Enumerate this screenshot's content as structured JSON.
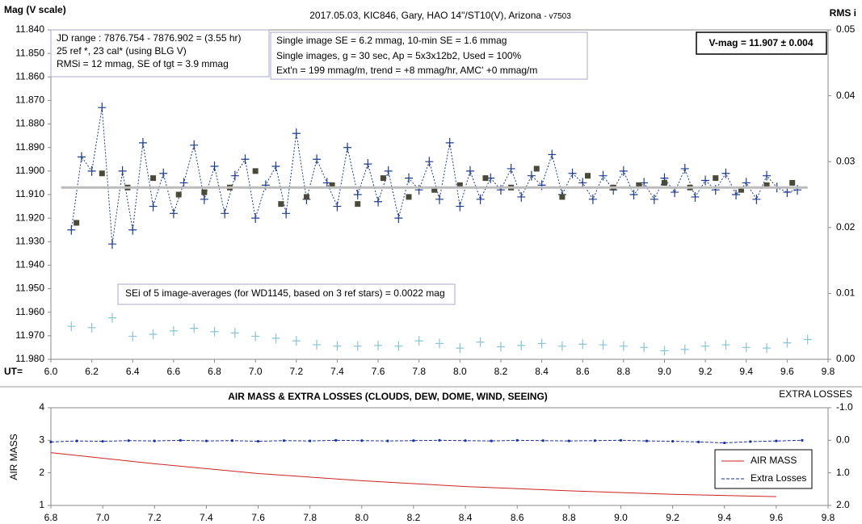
{
  "chart_data": [
    {
      "type": "line",
      "title": "2017.05.03,  KIC846, Gary, HAO 14\"/ST10(V), Arizona",
      "subtitle": "- v7503",
      "y_label": "Mag (V scale)",
      "y2_label": "RMS i",
      "x_label": "UT=",
      "xlim": [
        6.0,
        9.8
      ],
      "xticks": [
        {
          "value": 6.0,
          "label": "6.0"
        },
        6.2,
        6.4,
        6.6,
        6.8,
        {
          "value": 7.0,
          "label": "7.0"
        },
        7.2,
        7.4,
        7.6,
        7.8,
        {
          "value": 8.0,
          "label": "8.0"
        },
        8.2,
        8.4,
        8.6,
        8.8,
        {
          "value": 9.0,
          "label": "9.0"
        },
        9.2,
        9.4,
        9.6,
        9.8
      ],
      "ylim": [
        11.98,
        11.84
      ],
      "yticks": [
        {
          "value": 11.84,
          "label": "11.840"
        },
        {
          "value": 11.85,
          "label": "11.850"
        },
        {
          "value": 11.86,
          "label": "11.860"
        },
        {
          "value": 11.87,
          "label": "11.870"
        },
        {
          "value": 11.88,
          "label": "11.880"
        },
        {
          "value": 11.89,
          "label": "11.890"
        },
        {
          "value": 11.9,
          "label": "11.900"
        },
        {
          "value": 11.91,
          "label": "11.910"
        },
        {
          "value": 11.92,
          "label": "11.920"
        },
        {
          "value": 11.93,
          "label": "11.930"
        },
        {
          "value": 11.94,
          "label": "11.940"
        },
        {
          "value": 11.95,
          "label": "11.950"
        },
        {
          "value": 11.96,
          "label": "11.960"
        },
        {
          "value": 11.97,
          "label": "11.970"
        },
        {
          "value": 11.98,
          "label": "11.980"
        }
      ],
      "y2lim": [
        0,
        0.05
      ],
      "y2ticks": [
        {
          "value": 0,
          "label": "0.00"
        },
        0.01,
        0.02,
        0.03,
        0.04,
        0.05
      ],
      "grid": false,
      "annotations": [
        {
          "lines": [
            "JD range  : 7876.754 - 7876.902 = (3.55 hr)",
            "25 ref *, 23 cal* (using BLG V)",
            "RMSi = 12 mmag, SE of tgt = 3.9 mmag"
          ]
        },
        {
          "lines": [
            "Single image SE = 6.2 mmag, 10-min SE = 1.6 mmag",
            "Single images, g = 30 sec, Ap = 5x3x12b2, Used = 100%",
            "Ext'n = 199 mmag/m, trend = +8 mmag/hr, AMC' +0 mmag/m"
          ]
        },
        {
          "lines": [
            "V-mag = 11.907 ± 0.004"
          ]
        },
        {
          "lines": [
            "SEi of 5 image-averages (for WD1145, based on 3 ref stars) = 0.0022 mag"
          ]
        }
      ],
      "series": [
        {
          "color": "#1f3c8c",
          "marker": "plus",
          "line": "dotted",
          "x": [
            6.1,
            6.15,
            6.2,
            6.25,
            6.3,
            6.35,
            6.4,
            6.45,
            6.5,
            6.55,
            6.6,
            6.65,
            6.7,
            6.75,
            6.8,
            6.85,
            6.9,
            6.95,
            7.0,
            7.05,
            7.1,
            7.15,
            7.2,
            7.25,
            7.3,
            7.35,
            7.4,
            7.45,
            7.5,
            7.55,
            7.6,
            7.65,
            7.7,
            7.75,
            7.8,
            7.85,
            7.9,
            7.95,
            8.0,
            8.05,
            8.1,
            8.15,
            8.2,
            8.25,
            8.3,
            8.35,
            8.4,
            8.45,
            8.5,
            8.55,
            8.6,
            8.65,
            8.7,
            8.75,
            8.8,
            8.85,
            8.9,
            8.95,
            9.0,
            9.05,
            9.1,
            9.15,
            9.2,
            9.25,
            9.3,
            9.35,
            9.4,
            9.45,
            9.5,
            9.55,
            9.6,
            9.65
          ],
          "values": [
            11.925,
            11.894,
            11.9,
            11.873,
            11.931,
            11.9,
            11.925,
            11.888,
            11.915,
            11.901,
            11.918,
            11.905,
            11.889,
            11.912,
            11.898,
            11.918,
            11.902,
            11.895,
            11.92,
            11.906,
            11.898,
            11.918,
            11.884,
            11.912,
            11.895,
            11.905,
            11.915,
            11.89,
            11.91,
            11.897,
            11.913,
            11.9,
            11.92,
            11.903,
            11.908,
            11.896,
            11.912,
            11.888,
            11.915,
            11.9,
            11.912,
            11.903,
            11.908,
            11.899,
            11.911,
            11.902,
            11.906,
            11.893,
            11.91,
            11.901,
            11.905,
            11.912,
            11.902,
            11.908,
            11.9,
            11.91,
            11.905,
            11.912,
            11.903,
            11.909,
            11.899,
            11.911,
            11.904,
            11.908,
            11.901,
            11.91,
            11.905,
            11.912,
            11.902,
            11.907,
            11.909,
            11.908
          ]
        },
        {
          "color": "#4a4a3a",
          "marker": "square",
          "line": "none",
          "x": [
            6.125,
            6.25,
            6.375,
            6.5,
            6.625,
            6.75,
            6.875,
            7.0,
            7.125,
            7.25,
            7.375,
            7.5,
            7.625,
            7.75,
            7.875,
            8.0,
            8.125,
            8.25,
            8.375,
            8.5,
            8.625,
            8.75,
            8.875,
            9.0,
            9.125,
            9.25,
            9.375,
            9.5,
            9.625
          ],
          "values": [
            11.922,
            11.901,
            11.907,
            11.903,
            11.91,
            11.909,
            11.907,
            11.9,
            11.914,
            11.911,
            11.906,
            11.914,
            11.903,
            11.911,
            11.908,
            11.906,
            11.903,
            11.907,
            11.899,
            11.911,
            11.902,
            11.907,
            11.906,
            11.905,
            11.907,
            11.903,
            11.908,
            11.906,
            11.905
          ]
        },
        {
          "color": "#bbbbbb",
          "marker": "none",
          "line": "solid",
          "x": [
            6.05,
            9.7
          ],
          "values": [
            11.907,
            11.907
          ]
        },
        {
          "color": "#88c4d4",
          "marker": "plus",
          "line": "none",
          "axis": "y2",
          "x": [
            6.1,
            6.2,
            6.3,
            6.4,
            6.5,
            6.6,
            6.7,
            6.8,
            6.9,
            7.0,
            7.1,
            7.2,
            7.3,
            7.4,
            7.5,
            7.6,
            7.7,
            7.8,
            7.9,
            8.0,
            8.1,
            8.2,
            8.3,
            8.4,
            8.5,
            8.6,
            8.7,
            8.8,
            8.9,
            9.0,
            9.1,
            9.2,
            9.3,
            9.4,
            9.5,
            9.6,
            9.7
          ],
          "values": [
            0.005,
            0.0048,
            0.0063,
            0.0035,
            0.0038,
            0.0043,
            0.0047,
            0.0042,
            0.004,
            0.0035,
            0.0032,
            0.0028,
            0.0022,
            0.002,
            0.002,
            0.0021,
            0.002,
            0.0028,
            0.0024,
            0.0017,
            0.0026,
            0.0019,
            0.0021,
            0.0024,
            0.002,
            0.0023,
            0.0022,
            0.002,
            0.0018,
            0.0013,
            0.0015,
            0.002,
            0.0022,
            0.0018,
            0.0017,
            0.0025,
            0.003
          ]
        }
      ]
    },
    {
      "type": "line",
      "title": "AIR MASS & EXTRA LOSSES (CLOUDS, DEW, DOME, WIND, SEEING)",
      "y_label": "AIR MASS",
      "y2_label": "EXTRA LOSSES",
      "xlim": [
        6.8,
        9.8
      ],
      "xticks": [
        6.8,
        {
          "value": 7.0,
          "label": "7.0"
        },
        7.2,
        7.4,
        7.6,
        7.8,
        {
          "value": 8.0,
          "label": "8.0"
        },
        8.2,
        8.4,
        8.6,
        8.8,
        {
          "value": 9.0,
          "label": "9.0"
        },
        9.2,
        9.4,
        9.6,
        9.8
      ],
      "ylim": [
        1,
        4
      ],
      "yticks": [
        1,
        2,
        3,
        4
      ],
      "y2lim": [
        2.0,
        -1.0
      ],
      "y2ticks": [
        {
          "value": -1.0,
          "label": "-1.0"
        },
        {
          "value": 0,
          "label": "0.0"
        },
        {
          "value": 1.0,
          "label": "1.0"
        },
        {
          "value": 2.0,
          "label": "2.0"
        }
      ],
      "grid": false,
      "legend": "bottom-right",
      "series": [
        {
          "name": "AIR MASS",
          "color": "#cc2222",
          "marker": "none",
          "line": "solid",
          "x": [
            6.8,
            7.2,
            7.6,
            8.0,
            8.4,
            8.8,
            9.2,
            9.6
          ],
          "values": [
            2.62,
            2.28,
            1.98,
            1.76,
            1.58,
            1.45,
            1.34,
            1.27
          ]
        },
        {
          "name": "Extra Losses",
          "color": "#1a2fa0",
          "marker": "dot",
          "line": "dashed",
          "axis": "y2",
          "x": [
            6.8,
            6.9,
            7.0,
            7.1,
            7.2,
            7.3,
            7.4,
            7.5,
            7.6,
            7.7,
            7.8,
            7.9,
            8.0,
            8.1,
            8.2,
            8.3,
            8.4,
            8.5,
            8.6,
            8.7,
            8.8,
            8.9,
            9.0,
            9.1,
            9.2,
            9.3,
            9.4,
            9.5,
            9.6,
            9.7
          ],
          "values": [
            0.05,
            0.02,
            0.03,
            0.01,
            0.02,
            0.0,
            0.02,
            0.01,
            0.03,
            0.01,
            0.02,
            0.0,
            0.01,
            0.02,
            0.01,
            0.0,
            0.01,
            0.02,
            0.0,
            0.01,
            0.02,
            0.01,
            0.0,
            0.02,
            0.03,
            0.05,
            0.08,
            0.04,
            0.02,
            0.0
          ]
        }
      ]
    }
  ]
}
